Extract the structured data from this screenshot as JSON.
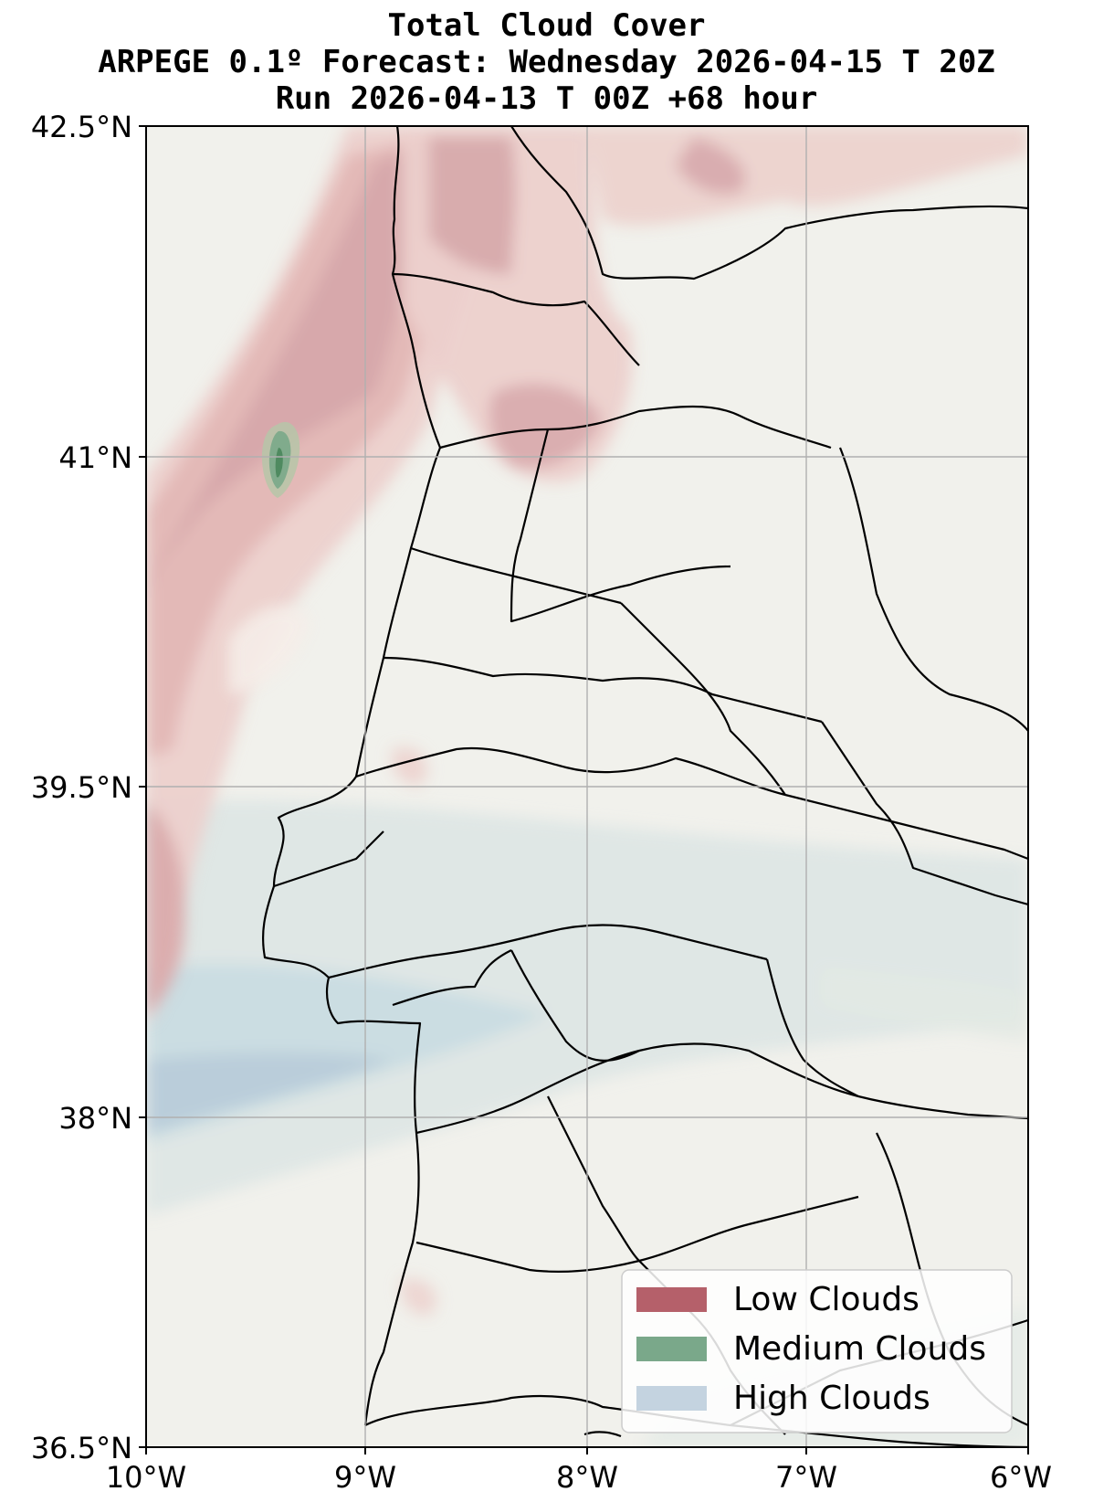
{
  "title": {
    "line1": "Total Cloud Cover",
    "line2": "ARPEGE 0.1º Forecast: Wednesday 2026-04-15 T 20Z",
    "line3": "Run 2026-04-13 T 00Z +68 hour"
  },
  "axes": {
    "x_ticks": [
      "10°W",
      "9°W",
      "8°W",
      "7°W",
      "6°W"
    ],
    "y_ticks": [
      "42.5°N",
      "41°N",
      "39.5°N",
      "38°N",
      "36.5°N"
    ],
    "lon_range": [
      -10,
      -6
    ],
    "lat_range": [
      36.5,
      42.5
    ],
    "grid": true
  },
  "legend": {
    "placement": "lower-right",
    "items": [
      {
        "label": "Low Clouds",
        "color": "#b5606a"
      },
      {
        "label": "Medium Clouds",
        "color": "#7aa88a"
      },
      {
        "label": "High Clouds",
        "color": "#c4d3e0"
      }
    ]
  },
  "colors": {
    "land_background": "#f1f1ec",
    "low_clouds": "#b5606a",
    "medium_clouds": "#4f8a60",
    "high_clouds": "#b9d0d8"
  }
}
